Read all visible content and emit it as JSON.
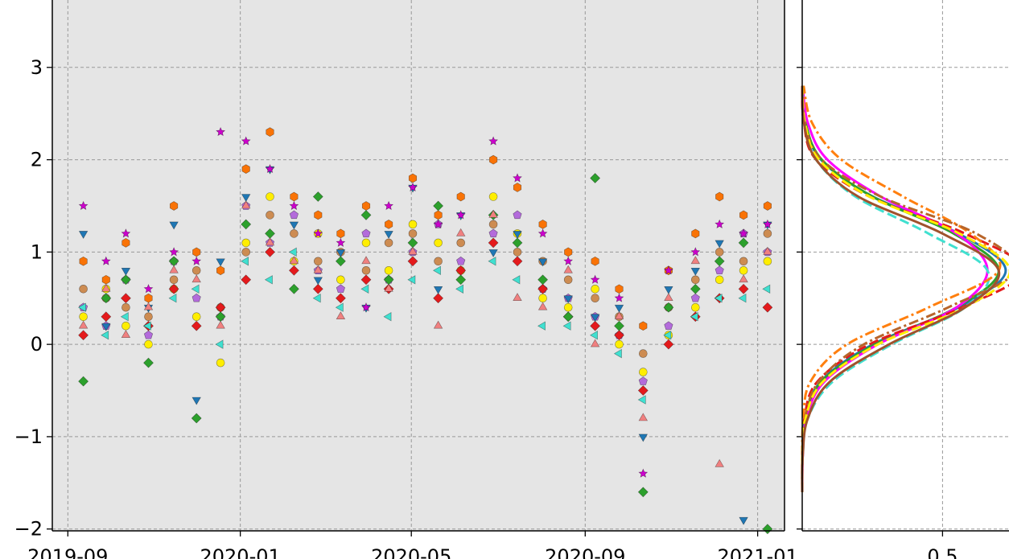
{
  "chart_data": [
    {
      "type": "scatter",
      "xlim": [
        "2019-08-21",
        "2021-01-20"
      ],
      "xticks": [
        {
          "value": "2019-09-01",
          "label": "2019-09"
        },
        {
          "value": "2020-01-01",
          "label": "2020-01"
        },
        {
          "value": "2020-05-01",
          "label": "2020-05"
        },
        {
          "value": "2020-09-01",
          "label": "2020-09"
        },
        {
          "value": "2021-01-01",
          "label": "2021-01"
        }
      ],
      "ylim": [
        -2.02,
        3.73
      ],
      "yticks": [
        {
          "value": -2,
          "label": "−2"
        },
        {
          "value": -1,
          "label": "−1"
        },
        0,
        1,
        2,
        3
      ],
      "grid": true,
      "background": "#e5e5e5",
      "x": [
        "2019-09-12",
        "2019-09-28",
        "2019-10-12",
        "2019-10-28",
        "2019-11-15",
        "2019-12-01",
        "2019-12-18",
        "2020-01-05",
        "2020-01-22",
        "2020-02-08",
        "2020-02-25",
        "2020-03-12",
        "2020-03-30",
        "2020-04-15",
        "2020-05-02",
        "2020-05-20",
        "2020-06-05",
        "2020-06-28",
        "2020-07-15",
        "2020-08-02",
        "2020-08-20",
        "2020-09-08",
        "2020-09-25",
        "2020-10-12",
        "2020-10-30",
        "2020-11-18",
        "2020-12-05",
        "2020-12-22",
        "2021-01-08"
      ],
      "series": [
        {
          "color": "#f97306",
          "marker": "hexagon",
          "values": [
            0.9,
            0.7,
            1.1,
            0.5,
            1.5,
            1.0,
            0.8,
            1.9,
            2.3,
            1.6,
            1.4,
            1.2,
            1.5,
            1.3,
            1.8,
            1.4,
            1.6,
            2.0,
            1.7,
            1.3,
            1.0,
            0.9,
            0.6,
            0.2,
            0.8,
            1.2,
            1.6,
            1.4,
            1.5
          ]
        },
        {
          "color": "#b36bdb",
          "marker": "pentagon",
          "values": [
            0.4,
            0.2,
            0.7,
            0.1,
            0.9,
            0.5,
            0.3,
            1.5,
            1.1,
            1.4,
            0.8,
            0.6,
            1.2,
            0.7,
            1.0,
            1.3,
            0.9,
            1.2,
            1.4,
            0.6,
            0.5,
            0.3,
            0.1,
            -0.4,
            0.2,
            0.5,
            0.8,
            1.2,
            1.0
          ]
        },
        {
          "color": "#cd8c52",
          "marker": "circle",
          "values": [
            0.6,
            0.5,
            0.4,
            0.3,
            0.7,
            0.8,
            0.4,
            1.0,
            1.4,
            1.2,
            0.9,
            1.0,
            0.8,
            1.1,
            1.2,
            0.9,
            1.1,
            1.3,
            1.0,
            0.9,
            0.7,
            0.5,
            0.3,
            -0.1,
            0.4,
            0.7,
            1.0,
            0.9,
            1.2
          ]
        },
        {
          "color": "#ffee00",
          "marker": "circle",
          "values": [
            0.3,
            0.6,
            0.2,
            0.0,
            0.6,
            0.3,
            -0.2,
            1.1,
            1.6,
            0.9,
            1.2,
            0.7,
            1.1,
            0.8,
            1.3,
            1.1,
            0.8,
            1.6,
            1.2,
            0.5,
            0.4,
            0.6,
            0.0,
            -0.3,
            0.1,
            0.4,
            0.7,
            0.8,
            0.9
          ]
        },
        {
          "color": "#e41a1c",
          "marker": "diamond",
          "values": [
            0.1,
            0.3,
            0.5,
            0.2,
            0.6,
            0.2,
            0.4,
            0.7,
            1.0,
            0.8,
            0.6,
            0.5,
            0.7,
            0.6,
            0.9,
            0.5,
            0.8,
            1.1,
            0.9,
            0.6,
            0.3,
            0.2,
            0.1,
            -0.5,
            0.0,
            0.3,
            0.5,
            0.6,
            0.4
          ]
        },
        {
          "color": "#1f77b4",
          "marker": "triangle_down",
          "values": [
            1.2,
            0.2,
            0.8,
            0.4,
            1.3,
            -0.6,
            0.9,
            1.6,
            1.9,
            1.3,
            0.7,
            1.0,
            0.4,
            1.2,
            1.7,
            0.6,
            1.4,
            1.0,
            1.2,
            0.9,
            0.5,
            0.3,
            0.4,
            -1.0,
            0.6,
            0.8,
            1.1,
            -1.9,
            1.3
          ]
        },
        {
          "color": "#40e0d0",
          "marker": "triangle_left",
          "values": [
            0.4,
            0.1,
            0.3,
            0.2,
            0.5,
            0.6,
            0.0,
            0.9,
            0.7,
            1.0,
            0.5,
            0.4,
            0.6,
            0.3,
            0.7,
            0.8,
            0.6,
            0.9,
            0.7,
            0.2,
            0.2,
            0.1,
            -0.1,
            -0.6,
            0.1,
            0.3,
            0.5,
            0.5,
            0.6
          ]
        },
        {
          "color": "#2ca02c",
          "marker": "diamond",
          "values": [
            -0.4,
            0.5,
            0.7,
            -0.2,
            0.9,
            -0.8,
            0.3,
            1.3,
            1.2,
            0.6,
            1.6,
            0.9,
            1.4,
            0.7,
            1.1,
            1.5,
            0.7,
            1.4,
            1.1,
            0.7,
            0.3,
            1.8,
            0.2,
            -1.6,
            0.4,
            0.6,
            0.9,
            1.1,
            -2.0
          ]
        },
        {
          "color": "#f08080",
          "marker": "triangle_up",
          "values": [
            0.2,
            0.6,
            0.1,
            0.4,
            0.8,
            0.7,
            0.2,
            1.5,
            1.1,
            0.9,
            0.8,
            0.3,
            0.9,
            0.6,
            1.0,
            0.2,
            1.2,
            1.4,
            0.5,
            0.4,
            0.8,
            0.0,
            0.3,
            -0.8,
            0.5,
            0.9,
            -1.3,
            0.7,
            1.0
          ]
        },
        {
          "color": "#cc00cc",
          "marker": "star",
          "values": [
            1.5,
            0.9,
            1.2,
            0.6,
            1.0,
            0.9,
            2.3,
            2.2,
            1.9,
            1.5,
            1.2,
            1.1,
            0.4,
            1.5,
            1.7,
            1.3,
            1.4,
            2.2,
            1.8,
            1.2,
            0.9,
            0.7,
            0.5,
            -1.4,
            0.8,
            1.0,
            1.3,
            1.2,
            1.3
          ]
        }
      ]
    },
    {
      "type": "kde",
      "xlim": [
        0,
        0.84
      ],
      "xticks": [
        0.5
      ],
      "ylim": [
        -2.02,
        3.73
      ],
      "yticks": [
        -2,
        -1,
        0,
        1,
        2,
        3
      ],
      "grid": true,
      "background": "#ffffff",
      "y": [
        -1.6,
        -1.2,
        -0.8,
        -0.4,
        0,
        0.4,
        0.8,
        1.2,
        1.6,
        2.0,
        2.4,
        2.8
      ],
      "series": [
        {
          "color": "#1f77b4",
          "linestyle": "solid",
          "values": [
            0.0,
            0.001,
            0.011,
            0.067,
            0.252,
            0.557,
            0.725,
            0.557,
            0.252,
            0.067,
            0.011,
            0.001
          ]
        },
        {
          "color": "#2ca02c",
          "linestyle": "solid",
          "values": [
            0.0,
            0.001,
            0.012,
            0.07,
            0.26,
            0.55,
            0.7,
            0.54,
            0.25,
            0.07,
            0.012,
            0.001
          ]
        },
        {
          "color": "#ff00ff",
          "linestyle": "solid",
          "values": [
            0.0,
            0.002,
            0.015,
            0.08,
            0.27,
            0.55,
            0.66,
            0.55,
            0.28,
            0.09,
            0.02,
            0.002
          ]
        },
        {
          "color": "#e41a1c",
          "linestyle": "dashed",
          "values": [
            0.0,
            0.001,
            0.008,
            0.055,
            0.24,
            0.57,
            0.79,
            0.58,
            0.24,
            0.05,
            0.006,
            0.0
          ]
        },
        {
          "color": "#40e0d0",
          "linestyle": "dashed",
          "values": [
            0.0,
            0.002,
            0.02,
            0.11,
            0.32,
            0.58,
            0.66,
            0.45,
            0.19,
            0.05,
            0.008,
            0.001
          ]
        },
        {
          "color": "#ff7f0e",
          "linestyle": "dashdot",
          "values": [
            0.0,
            0.0,
            0.004,
            0.03,
            0.16,
            0.45,
            0.7,
            0.6,
            0.36,
            0.14,
            0.035,
            0.005
          ]
        },
        {
          "color": "#b8652a",
          "linestyle": "dashdot",
          "values": [
            0.0,
            0.001,
            0.01,
            0.06,
            0.22,
            0.52,
            0.76,
            0.62,
            0.28,
            0.07,
            0.01,
            0.001
          ]
        },
        {
          "color": "#ffee00",
          "linestyle": "dashed",
          "values": [
            0.0,
            0.001,
            0.012,
            0.075,
            0.27,
            0.58,
            0.74,
            0.56,
            0.24,
            0.06,
            0.01,
            0.001
          ]
        },
        {
          "color": "#a0522d",
          "linestyle": "solid",
          "values": [
            0.0,
            0.002,
            0.02,
            0.1,
            0.31,
            0.58,
            0.7,
            0.5,
            0.2,
            0.05,
            0.006,
            0.0
          ]
        }
      ]
    }
  ]
}
